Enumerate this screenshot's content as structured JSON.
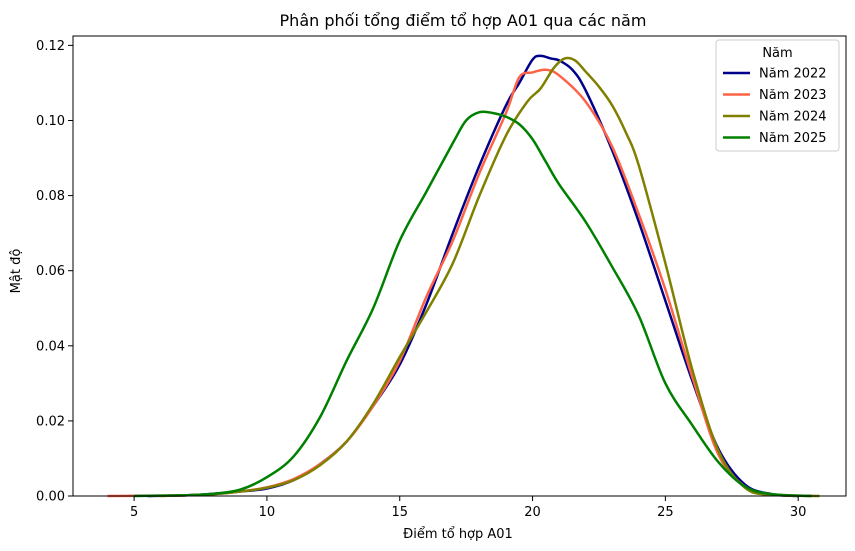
{
  "chart_data": {
    "type": "line",
    "title": "Phân phối tổng điểm tổ hợp A01 qua các năm",
    "xlabel": "Điểm tổ hợp A01",
    "ylabel": "Mật độ",
    "xlim": [
      2.7,
      31.8
    ],
    "ylim": [
      0,
      0.1225
    ],
    "x_ticks": [
      5,
      10,
      15,
      20,
      25,
      30
    ],
    "y_ticks": [
      0.0,
      0.02,
      0.04,
      0.06,
      0.08,
      0.1,
      0.12
    ],
    "y_tick_labels": [
      "0.00",
      "0.02",
      "0.04",
      "0.06",
      "0.08",
      "0.10",
      "0.12"
    ],
    "grid": false,
    "legend": {
      "title": "Năm",
      "position": "top-right"
    },
    "series": [
      {
        "name": "Năm 2022",
        "color": "#00008B",
        "points": [
          [
            5.5,
            0
          ],
          [
            7,
            0.0002
          ],
          [
            8,
            0.0006
          ],
          [
            9,
            0.0012
          ],
          [
            10,
            0.002
          ],
          [
            11,
            0.0042
          ],
          [
            12,
            0.0085
          ],
          [
            13,
            0.0145
          ],
          [
            14,
            0.024
          ],
          [
            15,
            0.035
          ],
          [
            16,
            0.051
          ],
          [
            17,
            0.07
          ],
          [
            18,
            0.088
          ],
          [
            19,
            0.104
          ],
          [
            19.5,
            0.11
          ],
          [
            20,
            0.1162
          ],
          [
            20.3,
            0.1172
          ],
          [
            20.7,
            0.1165
          ],
          [
            21,
            0.116
          ],
          [
            21.5,
            0.1135
          ],
          [
            22,
            0.108
          ],
          [
            23,
            0.092
          ],
          [
            24,
            0.073
          ],
          [
            25,
            0.052
          ],
          [
            26,
            0.031
          ],
          [
            27,
            0.0125
          ],
          [
            28,
            0.003
          ],
          [
            29,
            0.0005
          ],
          [
            30,
            0
          ]
        ]
      },
      {
        "name": "Năm 2023",
        "color": "#FF6347",
        "points": [
          [
            4,
            0
          ],
          [
            6,
            0.0001
          ],
          [
            7,
            0.0002
          ],
          [
            8,
            0.0005
          ],
          [
            9,
            0.0012
          ],
          [
            10,
            0.0023
          ],
          [
            11,
            0.0045
          ],
          [
            12,
            0.0085
          ],
          [
            13,
            0.0145
          ],
          [
            14,
            0.024
          ],
          [
            15,
            0.036
          ],
          [
            16,
            0.053
          ],
          [
            17,
            0.068
          ],
          [
            18,
            0.086
          ],
          [
            19,
            0.102
          ],
          [
            19.5,
            0.1115
          ],
          [
            20,
            0.1128
          ],
          [
            20.5,
            0.1135
          ],
          [
            21,
            0.112
          ],
          [
            22,
            0.105
          ],
          [
            23,
            0.093
          ],
          [
            24,
            0.075
          ],
          [
            25,
            0.055
          ],
          [
            26,
            0.032
          ],
          [
            27,
            0.011
          ],
          [
            28,
            0.0025
          ],
          [
            29,
            0.0005
          ],
          [
            30.5,
            0
          ]
        ]
      },
      {
        "name": "Năm 2024",
        "color": "#808000",
        "points": [
          [
            6,
            0
          ],
          [
            7,
            0.0002
          ],
          [
            8,
            0.0005
          ],
          [
            9,
            0.0012
          ],
          [
            10,
            0.0022
          ],
          [
            11,
            0.0042
          ],
          [
            12,
            0.0082
          ],
          [
            13,
            0.0145
          ],
          [
            14,
            0.0245
          ],
          [
            15,
            0.037
          ],
          [
            16,
            0.049
          ],
          [
            17,
            0.062
          ],
          [
            18,
            0.08
          ],
          [
            19,
            0.096
          ],
          [
            19.8,
            0.105
          ],
          [
            20.3,
            0.1085
          ],
          [
            20.8,
            0.114
          ],
          [
            21.2,
            0.1165
          ],
          [
            21.6,
            0.116
          ],
          [
            22,
            0.113
          ],
          [
            22.5,
            0.109
          ],
          [
            23,
            0.104
          ],
          [
            23.5,
            0.097
          ],
          [
            24,
            0.088
          ],
          [
            25,
            0.062
          ],
          [
            26,
            0.034
          ],
          [
            27,
            0.012
          ],
          [
            28,
            0.0022
          ],
          [
            29,
            0.0003
          ],
          [
            30.8,
            0
          ]
        ]
      },
      {
        "name": "Năm 2025",
        "color": "#008000",
        "points": [
          [
            5,
            0
          ],
          [
            6,
            0.0001
          ],
          [
            7,
            0.0002
          ],
          [
            8,
            0.0006
          ],
          [
            9,
            0.0017
          ],
          [
            10,
            0.005
          ],
          [
            11,
            0.0105
          ],
          [
            12,
            0.021
          ],
          [
            13,
            0.036
          ],
          [
            14,
            0.05
          ],
          [
            15,
            0.068
          ],
          [
            16,
            0.081
          ],
          [
            17,
            0.094
          ],
          [
            17.5,
            0.1
          ],
          [
            18,
            0.1022
          ],
          [
            18.5,
            0.102
          ],
          [
            19,
            0.101
          ],
          [
            19.5,
            0.099
          ],
          [
            20,
            0.095
          ],
          [
            20.5,
            0.089
          ],
          [
            21,
            0.083
          ],
          [
            22,
            0.073
          ],
          [
            23,
            0.061
          ],
          [
            24,
            0.048
          ],
          [
            25,
            0.03
          ],
          [
            26,
            0.019
          ],
          [
            27,
            0.009
          ],
          [
            28,
            0.0025
          ],
          [
            29,
            0.0005
          ],
          [
            30.5,
            0
          ]
        ]
      }
    ]
  }
}
